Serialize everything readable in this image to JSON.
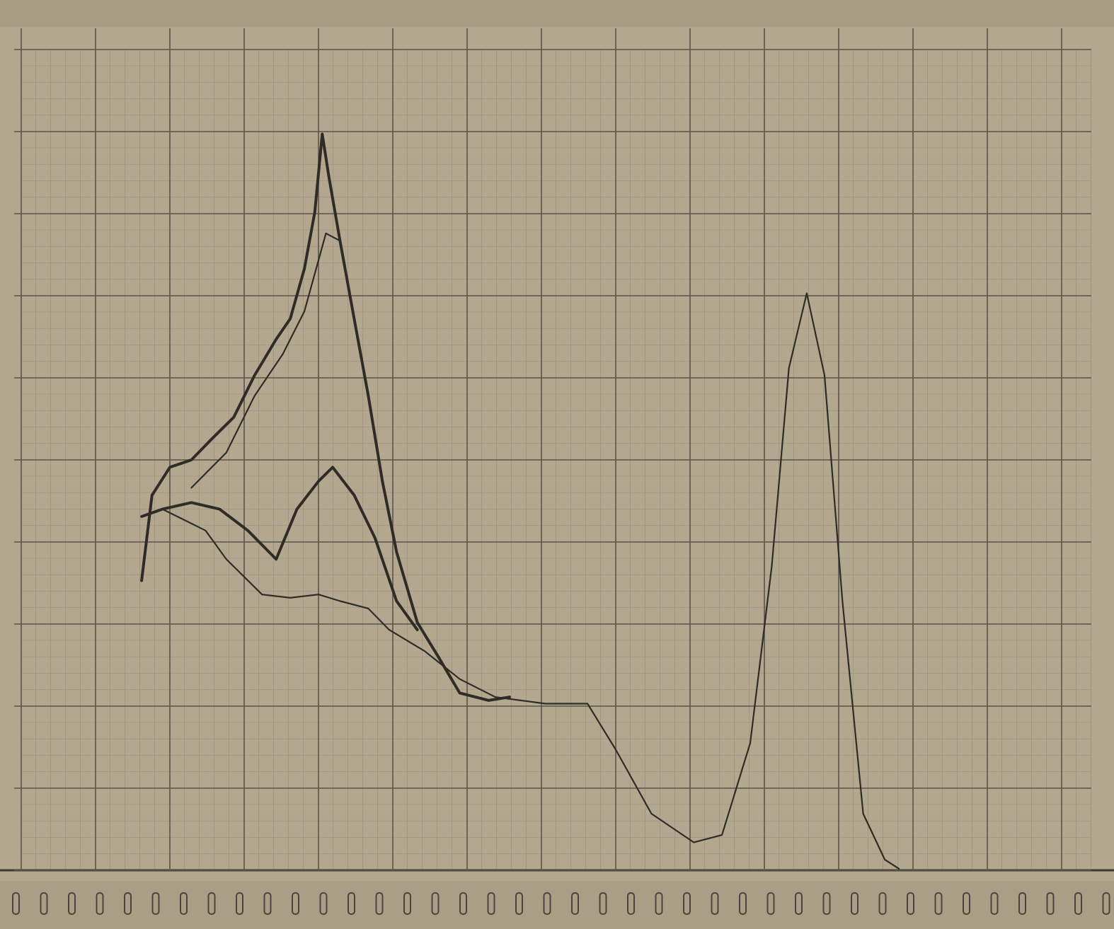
{
  "chart_data": {
    "type": "line",
    "grid": true,
    "xlim": [
      0,
      14.4
    ],
    "ylim": [
      0,
      10
    ],
    "xticks": [
      0,
      1,
      2,
      3,
      4,
      5,
      6,
      7,
      8,
      9,
      10,
      11,
      12,
      13,
      14
    ],
    "yticks": [
      0,
      1,
      2,
      3,
      4,
      5,
      6,
      7,
      8,
      9,
      10
    ],
    "series": [
      {
        "color": "#2f2c27",
        "x": [
          1.62,
          1.76,
          2.0,
          2.29,
          2.57,
          2.86,
          3.14,
          3.43,
          3.62,
          3.81,
          3.95,
          4.05,
          4.14,
          4.29,
          4.48,
          4.67,
          4.86,
          5.05,
          5.33,
          5.62,
          5.9,
          6.29,
          6.57
        ],
        "values": [
          3.53,
          4.57,
          4.91,
          5.0,
          5.26,
          5.52,
          6.03,
          6.47,
          6.72,
          7.33,
          8.02,
          8.97,
          8.45,
          7.67,
          6.72,
          5.78,
          4.74,
          3.88,
          3.02,
          2.59,
          2.16,
          2.07,
          2.11
        ]
      },
      {
        "color": "#2f2c27",
        "x": [
          1.62,
          1.9,
          2.29,
          2.67,
          3.05,
          3.43,
          3.71,
          4.0,
          4.19,
          4.48,
          4.76,
          5.05,
          5.33
        ],
        "values": [
          4.31,
          4.4,
          4.48,
          4.4,
          4.14,
          3.79,
          4.4,
          4.74,
          4.91,
          4.57,
          4.05,
          3.28,
          2.93
        ]
      },
      {
        "color": "#3a362f",
        "x": [
          1.9,
          2.48,
          2.76,
          3.24,
          3.62,
          4.0,
          4.29,
          4.67,
          4.95,
          5.43,
          5.9,
          6.38,
          7.05,
          7.62,
          8.0,
          8.48,
          9.05,
          9.43,
          9.81,
          10.1,
          10.33,
          10.57,
          10.81,
          11.05,
          11.33,
          11.62,
          11.81
        ],
        "values": [
          4.4,
          4.14,
          3.79,
          3.36,
          3.32,
          3.36,
          3.28,
          3.19,
          2.93,
          2.67,
          2.33,
          2.11,
          2.03,
          2.03,
          1.47,
          0.69,
          0.34,
          0.43,
          1.55,
          3.71,
          6.12,
          7.03,
          6.03,
          3.28,
          0.69,
          0.13,
          0.02
        ]
      },
      {
        "color": "#3a362f",
        "x": [
          2.29,
          2.76,
          3.14,
          3.52,
          3.81,
          4.1,
          4.29
        ],
        "values": [
          4.66,
          5.09,
          5.78,
          6.29,
          6.81,
          7.76,
          7.67
        ]
      }
    ]
  }
}
